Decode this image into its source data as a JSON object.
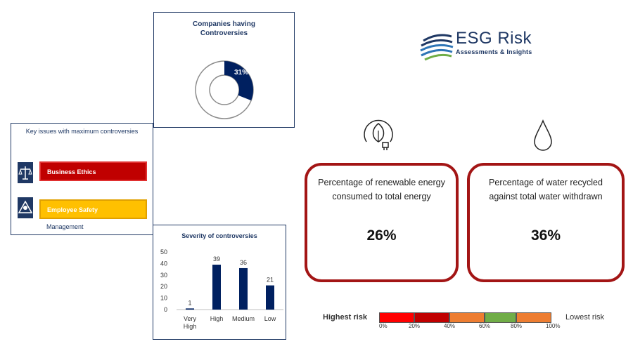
{
  "logo": {
    "title": "ESG Risk",
    "subtitle": "Assessments & Insights"
  },
  "controversies": {
    "title_line1": "Companies having",
    "title_line2": "Controversies",
    "percent_label": "31%",
    "percent_value": 31,
    "colors": {
      "filled": "#002060",
      "rest": "#ffffff",
      "outline": "#8c8c8c"
    }
  },
  "key_issues": {
    "title": "Key issues with maximum controversies",
    "items": [
      {
        "label": "Business Ethics",
        "icon": "scales-icon",
        "color": "#c00000"
      },
      {
        "label": "Employee Safety",
        "label_cont": "Management",
        "icon": "safety-icon",
        "color": "#ffc000"
      }
    ]
  },
  "chart_data": {
    "type": "bar",
    "title": "Severity of controversies",
    "categories": [
      "Very High",
      "High",
      "Medium",
      "Low"
    ],
    "values": [
      1,
      39,
      36,
      21
    ],
    "ylim": [
      0,
      50
    ],
    "yticks": [
      0,
      10,
      20,
      30,
      40,
      50
    ],
    "xlabel": "",
    "ylabel": "",
    "grid": false,
    "bar_color": "#002060"
  },
  "cards": [
    {
      "label": "Percentage of renewable energy consumed to total energy",
      "value": "26%",
      "icon": "leaf-plug-icon"
    },
    {
      "label": "Percentage of water recycled against total water withdrawn",
      "value": "36%",
      "icon": "water-drop-icon"
    }
  ],
  "risk_scale": {
    "high_label": "Highest risk",
    "low_label": "Lowest risk",
    "ticks": [
      "0%",
      "20%",
      "40%",
      "60%",
      "80%",
      "100%"
    ],
    "segment_colors": [
      "#ff0000",
      "#c00000",
      "#ed7d31",
      "#70ad47",
      "#ed7d31"
    ]
  }
}
